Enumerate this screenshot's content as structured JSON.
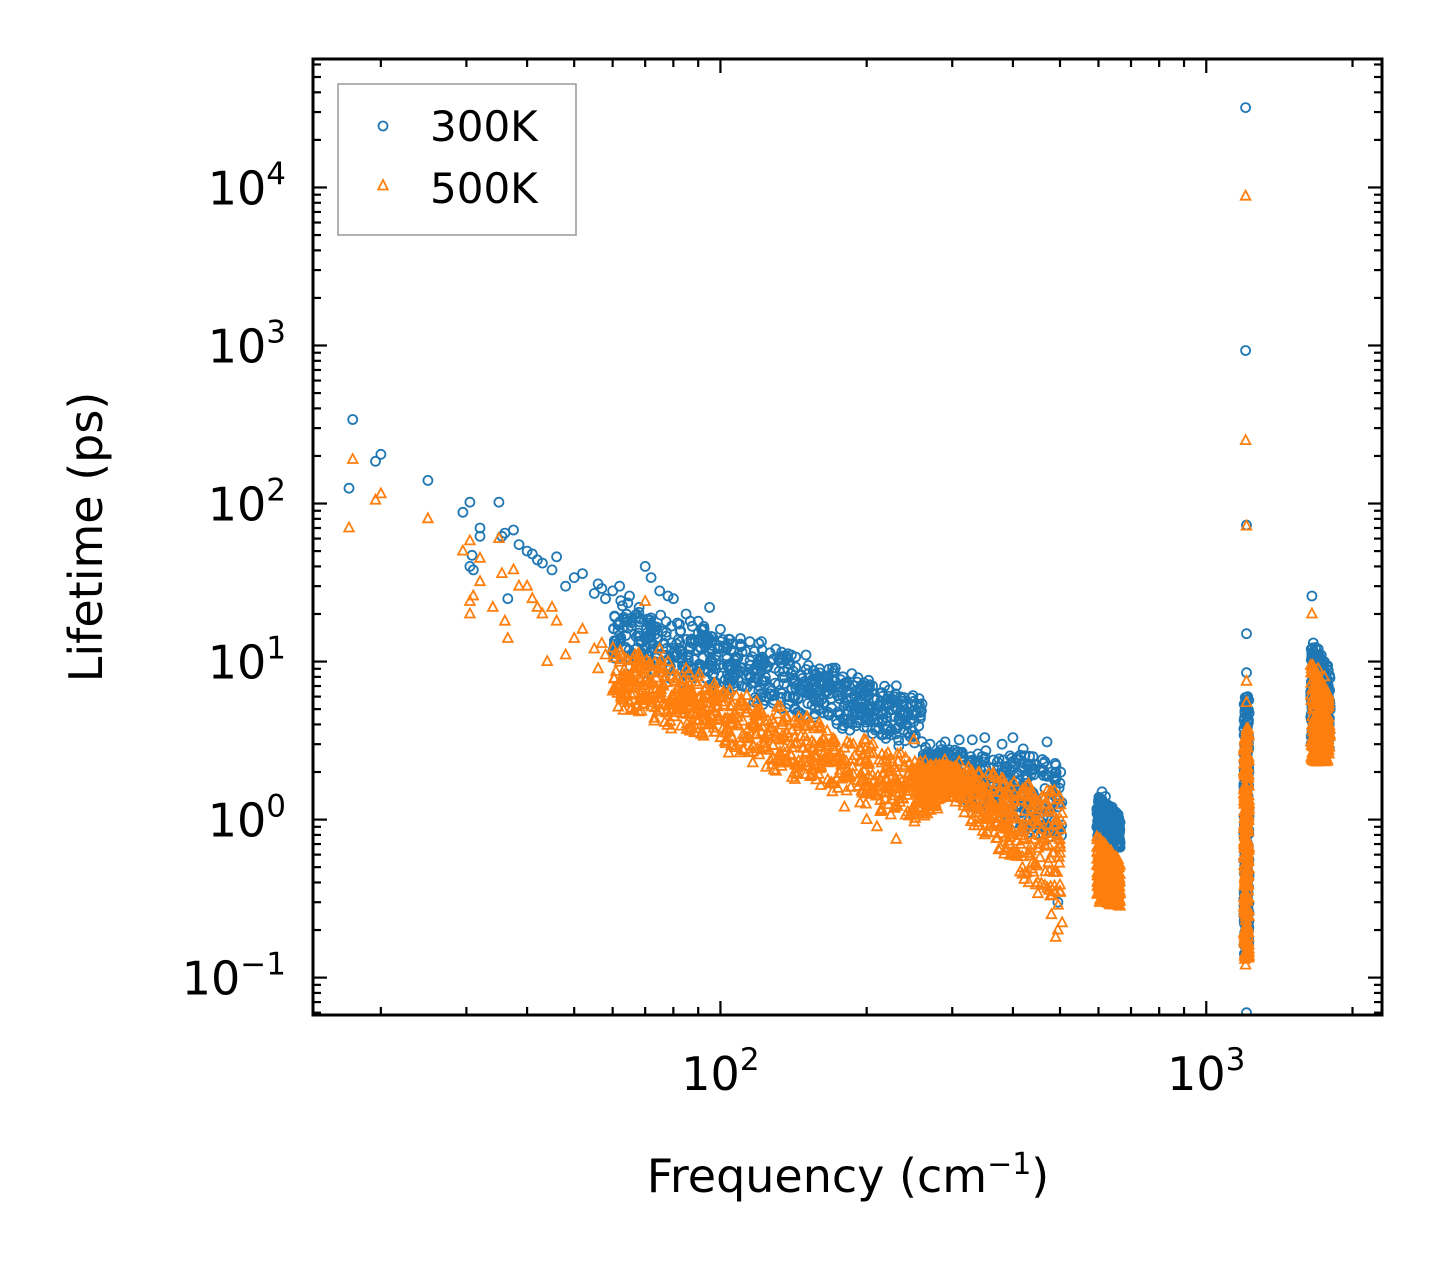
{
  "chart_data": {
    "type": "scatter",
    "title": "",
    "xlabel": "Frequency (cm",
    "xlabel_sup": "−1",
    "xlabel_end": ")",
    "ylabel": "Lifetime (ps)",
    "xscale": "log",
    "yscale": "log",
    "xlim": [
      14.5,
      2300
    ],
    "ylim": [
      0.058,
      65000
    ],
    "x_ticks": [
      {
        "value": 100,
        "base": "10",
        "exp": "2"
      },
      {
        "value": 1000,
        "base": "10",
        "exp": "3"
      }
    ],
    "y_ticks": [
      {
        "value": 0.1,
        "base": "10",
        "exp": "−1"
      },
      {
        "value": 1,
        "base": "10",
        "exp": "0"
      },
      {
        "value": 10,
        "base": "10",
        "exp": "1"
      },
      {
        "value": 100,
        "base": "10",
        "exp": "2"
      },
      {
        "value": 1000,
        "base": "10",
        "exp": "3"
      },
      {
        "value": 10000,
        "base": "10",
        "exp": "4"
      }
    ],
    "legend_position": "top-left",
    "series": [
      {
        "name": "300K",
        "marker": "circle",
        "color": "#1f77b4",
        "points": [
          [
            17.5,
            340
          ],
          [
            17.2,
            125
          ],
          [
            19.5,
            185
          ],
          [
            20,
            205
          ],
          [
            25,
            140
          ],
          [
            29.5,
            88
          ],
          [
            30.5,
            102
          ],
          [
            30.5,
            40
          ],
          [
            31,
            38
          ],
          [
            30.8,
            47
          ],
          [
            32,
            70
          ],
          [
            32,
            62
          ],
          [
            35,
            102
          ],
          [
            35.5,
            62
          ],
          [
            36,
            65
          ],
          [
            36.5,
            25
          ],
          [
            37.5,
            68
          ],
          [
            38.5,
            55
          ],
          [
            40,
            50
          ],
          [
            41,
            48
          ],
          [
            42,
            44
          ],
          [
            43,
            42
          ],
          [
            45,
            38
          ],
          [
            46,
            46
          ],
          [
            48,
            30
          ],
          [
            50,
            34
          ],
          [
            52,
            36
          ],
          [
            55,
            27
          ],
          [
            56,
            31
          ],
          [
            57,
            29
          ],
          [
            58,
            25
          ],
          [
            60,
            28
          ],
          [
            62,
            30
          ],
          [
            65,
            26
          ],
          [
            68,
            22
          ],
          [
            70,
            40
          ],
          [
            72,
            34
          ],
          [
            75,
            28
          ],
          [
            78,
            26
          ],
          [
            80,
            25
          ],
          [
            85,
            20
          ],
          [
            90,
            18
          ],
          [
            95,
            22
          ],
          [
            100,
            16
          ],
          [
            110,
            14
          ],
          [
            120,
            13
          ],
          [
            130,
            12
          ],
          [
            140,
            11
          ],
          [
            150,
            11
          ],
          [
            160,
            9
          ],
          [
            170,
            8.5
          ],
          [
            180,
            7
          ],
          [
            190,
            6.5
          ],
          [
            200,
            6
          ],
          [
            210,
            5.8
          ],
          [
            220,
            5.5
          ],
          [
            230,
            5
          ],
          [
            240,
            4.8
          ],
          [
            250,
            5.6
          ],
          [
            260,
            5.4
          ],
          [
            270,
            3
          ],
          [
            290,
            3.1
          ],
          [
            310,
            3.2
          ],
          [
            330,
            3.2
          ],
          [
            350,
            3.3
          ],
          [
            380,
            3.0
          ],
          [
            400,
            3.3
          ],
          [
            420,
            2.8
          ],
          [
            440,
            2.5
          ],
          [
            460,
            2.4
          ],
          [
            470,
            3.1
          ],
          [
            480,
            2.0
          ],
          [
            490,
            1.8
          ],
          [
            495,
            0.3
          ],
          [
            500,
            1.7
          ],
          [
            610,
            1.5
          ],
          [
            620,
            1.4
          ],
          [
            640,
            1.2
          ],
          [
            650,
            0.8
          ],
          [
            1205,
            32000
          ],
          [
            1205,
            930
          ],
          [
            1210,
            73
          ],
          [
            1210,
            15
          ],
          [
            1210,
            8.5
          ],
          [
            1210,
            5
          ],
          [
            1210,
            0.06
          ],
          [
            1205,
            0.2
          ],
          [
            1650,
            26
          ],
          [
            1700,
            12
          ],
          [
            1750,
            10
          ]
        ],
        "bands": [
          {
            "x_from": 60,
            "x_to": 260,
            "y_low_from": 9.5,
            "y_low_to": 2.6,
            "y_high_from": 27,
            "y_high_to": 6.5
          },
          {
            "x_from": 260,
            "x_to": 505,
            "y_low_from": 1.6,
            "y_low_to": 0.6,
            "y_high_from": 3.1,
            "y_high_to": 2.6
          },
          {
            "x_from": 595,
            "x_to": 665,
            "y_low_from": 0.75,
            "y_low_to": 0.65,
            "y_high_from": 1.45,
            "y_high_to": 1.05
          },
          {
            "x_from": 1195,
            "x_to": 1225,
            "y_low_from": 0.14,
            "y_low_to": 0.14,
            "y_high_from": 6.0,
            "y_high_to": 6.0
          },
          {
            "x_from": 1640,
            "x_to": 1800,
            "y_low_from": 3.0,
            "y_low_to": 2.8,
            "y_high_from": 14,
            "y_high_to": 9
          }
        ]
      },
      {
        "name": "500K",
        "marker": "triangle",
        "color": "#ff7f0e",
        "points": [
          [
            17.5,
            190
          ],
          [
            17.2,
            70
          ],
          [
            19.5,
            105
          ],
          [
            20,
            115
          ],
          [
            25,
            80
          ],
          [
            29.5,
            50
          ],
          [
            30.5,
            58
          ],
          [
            30.5,
            24
          ],
          [
            30.5,
            20
          ],
          [
            31,
            26
          ],
          [
            32,
            45
          ],
          [
            32,
            32
          ],
          [
            34,
            22
          ],
          [
            35,
            60
          ],
          [
            35.5,
            36
          ],
          [
            36,
            18
          ],
          [
            36.5,
            14
          ],
          [
            37.5,
            38
          ],
          [
            38.5,
            30
          ],
          [
            40,
            30
          ],
          [
            41,
            25
          ],
          [
            42,
            22
          ],
          [
            43,
            20
          ],
          [
            44,
            10
          ],
          [
            45,
            22
          ],
          [
            46,
            18
          ],
          [
            48,
            11
          ],
          [
            50,
            14
          ],
          [
            52,
            16
          ],
          [
            55,
            12
          ],
          [
            56,
            9
          ],
          [
            57,
            13
          ],
          [
            58,
            11
          ],
          [
            60,
            6.5
          ],
          [
            62,
            7
          ],
          [
            65,
            5.5
          ],
          [
            68,
            11
          ],
          [
            70,
            24
          ],
          [
            72,
            5.5
          ],
          [
            75,
            12
          ],
          [
            78,
            10
          ],
          [
            80,
            5
          ],
          [
            85,
            9
          ],
          [
            90,
            8
          ],
          [
            95,
            6.5
          ],
          [
            100,
            6
          ],
          [
            110,
            5
          ],
          [
            120,
            4.5
          ],
          [
            130,
            3.5
          ],
          [
            140,
            3
          ],
          [
            150,
            2.6
          ],
          [
            160,
            2.1
          ],
          [
            170,
            1.5
          ],
          [
            180,
            1.2
          ],
          [
            200,
            1
          ],
          [
            210,
            0.9
          ],
          [
            230,
            0.75
          ],
          [
            250,
            3.2
          ],
          [
            260,
            1.8
          ],
          [
            300,
            1.5
          ],
          [
            330,
            1.0
          ],
          [
            350,
            0.8
          ],
          [
            400,
            0.6
          ],
          [
            450,
            0.4
          ],
          [
            480,
            0.25
          ],
          [
            490,
            0.18
          ],
          [
            495,
            0.2
          ],
          [
            500,
            0.7
          ],
          [
            600,
            0.6
          ],
          [
            620,
            0.5
          ],
          [
            640,
            0.5
          ],
          [
            1205,
            8800
          ],
          [
            1205,
            250
          ],
          [
            1210,
            72
          ],
          [
            1210,
            7.5
          ],
          [
            1210,
            5.5
          ],
          [
            1205,
            0.12
          ],
          [
            1650,
            20
          ],
          [
            1700,
            9
          ],
          [
            1750,
            8
          ]
        ],
        "bands": [
          {
            "x_from": 60,
            "x_to": 250,
            "y_low_from": 4.8,
            "y_low_to": 0.9,
            "y_high_from": 14,
            "y_high_to": 2.6
          },
          {
            "x_from": 250,
            "x_to": 300,
            "y_low_from": 0.9,
            "y_low_to": 1.3,
            "y_high_from": 2.6,
            "y_high_to": 2.4
          },
          {
            "x_from": 300,
            "x_to": 505,
            "y_low_from": 1.3,
            "y_low_to": 0.2,
            "y_high_from": 2.4,
            "y_high_to": 1.7
          },
          {
            "x_from": 595,
            "x_to": 665,
            "y_low_from": 0.3,
            "y_low_to": 0.28,
            "y_high_from": 0.8,
            "y_high_to": 0.55
          },
          {
            "x_from": 1195,
            "x_to": 1225,
            "y_low_from": 0.13,
            "y_low_to": 0.13,
            "y_high_from": 3.8,
            "y_high_to": 3.8
          },
          {
            "x_from": 1640,
            "x_to": 1800,
            "y_low_from": 2.3,
            "y_low_to": 2.3,
            "y_high_from": 10,
            "y_high_to": 6
          }
        ]
      }
    ]
  }
}
